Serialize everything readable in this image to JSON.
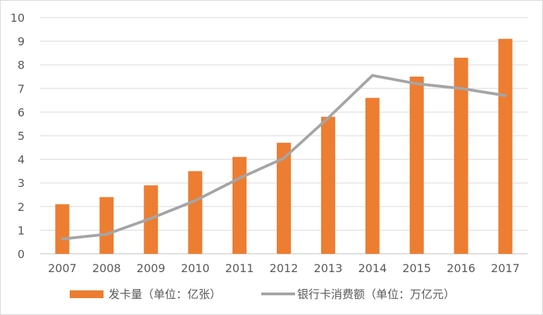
{
  "chart_data": {
    "type": "bar",
    "categories": [
      "2007",
      "2008",
      "2009",
      "2010",
      "2011",
      "2012",
      "2013",
      "2014",
      "2015",
      "2016",
      "2017"
    ],
    "series": [
      {
        "name": "发卡量（单位：亿张）",
        "kind": "bar",
        "color": "#ED7D31",
        "values": [
          2.1,
          2.4,
          2.9,
          3.5,
          4.1,
          4.7,
          5.8,
          6.6,
          7.5,
          8.3,
          9.1
        ]
      },
      {
        "name": "银行卡消费额（单位：万亿元）",
        "kind": "line",
        "color": "#A5A5A5",
        "values": [
          0.63,
          0.83,
          1.5,
          2.25,
          3.2,
          4.05,
          5.75,
          7.55,
          7.2,
          7.0,
          6.7
        ]
      }
    ],
    "yticks": [
      "0",
      "1",
      "2",
      "3",
      "4",
      "5",
      "6",
      "7",
      "8",
      "9",
      "10"
    ],
    "ylim": [
      0,
      10
    ],
    "grid": true,
    "legend": "bottom",
    "title": "",
    "xlabel": "",
    "ylabel": ""
  }
}
